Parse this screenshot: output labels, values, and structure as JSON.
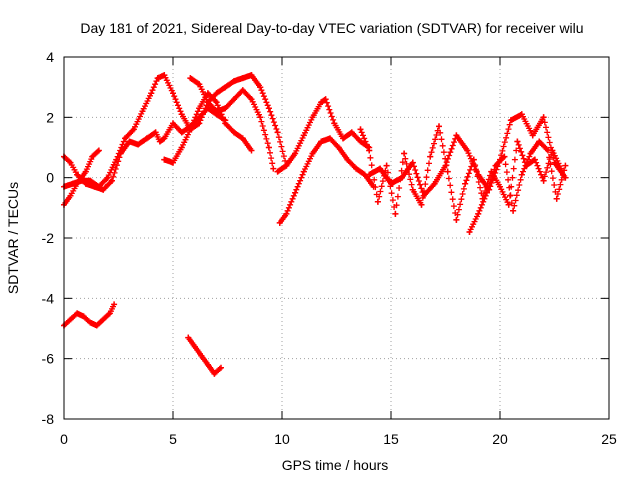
{
  "chart_data": {
    "type": "scatter",
    "title": "Day 181 of 2021, Sidereal Day-to-day VTEC variation (SDTVAR) for receiver wilu",
    "xlabel": "GPS time / hours",
    "ylabel": "SDTVAR / TECUs",
    "xlim": [
      0,
      25
    ],
    "ylim": [
      -8,
      4
    ],
    "x_ticks": [
      0,
      5,
      10,
      15,
      20,
      25
    ],
    "y_ticks": [
      -8,
      -6,
      -4,
      -2,
      0,
      2,
      4
    ],
    "x_tick_labels": [
      "0",
      "5",
      "10",
      "15",
      "20",
      "25"
    ],
    "y_tick_labels": [
      "-8",
      "-6",
      "-4",
      "-2",
      "0",
      "2",
      "4"
    ],
    "grid": true,
    "marker": "+",
    "series_color": "#ff0000",
    "series": [
      {
        "name": "satellite track 1",
        "x": [
          0.0,
          0.3,
          0.6,
          1.0,
          1.4,
          1.8,
          2.2,
          2.6,
          3.0,
          3.4,
          3.8,
          4.2,
          4.4,
          4.6,
          5.0,
          5.4,
          5.8,
          6.2,
          6.6,
          7.0,
          7.4
        ],
        "y": [
          0.7,
          0.5,
          0.1,
          -0.2,
          -0.3,
          -0.4,
          -0.1,
          0.8,
          1.2,
          1.1,
          1.3,
          1.5,
          1.2,
          1.3,
          1.8,
          1.5,
          1.7,
          2.0,
          2.3,
          2.1,
          1.9
        ]
      },
      {
        "name": "satellite track 2",
        "x": [
          0.0,
          0.4,
          0.8,
          1.2,
          1.6,
          2.0,
          2.4,
          2.8,
          3.2,
          3.6,
          4.0,
          4.3,
          4.6,
          5.0,
          5.4,
          5.8,
          6.2,
          6.6,
          7.0,
          7.4,
          7.8,
          8.2,
          8.6,
          9.0,
          9.4,
          9.8,
          10.2
        ],
        "y": [
          -0.3,
          -0.2,
          -0.1,
          -0.1,
          -0.3,
          0.0,
          0.6,
          1.3,
          1.6,
          2.2,
          2.8,
          3.3,
          3.4,
          2.8,
          2.1,
          1.6,
          1.8,
          2.5,
          2.8,
          3.0,
          3.2,
          3.3,
          3.4,
          3.0,
          2.3,
          1.5,
          0.4
        ]
      },
      {
        "name": "satellite track 3",
        "x": [
          0.0,
          0.3,
          0.6,
          1.0,
          1.3,
          1.6
        ],
        "y": [
          -0.9,
          -0.6,
          -0.2,
          0.2,
          0.7,
          0.9
        ]
      },
      {
        "name": "satellite track 4",
        "x": [
          5.8,
          6.2,
          6.6,
          7.0,
          7.4,
          7.8,
          8.2,
          8.6,
          9.0,
          9.4,
          9.6
        ],
        "y": [
          3.3,
          3.1,
          2.5,
          2.2,
          2.3,
          2.6,
          2.9,
          2.6,
          2.0,
          1.0,
          0.3
        ]
      },
      {
        "name": "satellite track 5",
        "x": [
          4.6,
          5.0,
          5.4,
          5.8,
          6.2,
          6.6,
          7.0,
          7.4,
          7.8,
          8.2,
          8.6
        ],
        "y": [
          0.6,
          0.5,
          1.0,
          1.6,
          2.3,
          2.8,
          2.5,
          1.8,
          1.5,
          1.3,
          0.9
        ]
      },
      {
        "name": "satellite track 6",
        "x": [
          9.8,
          10.2,
          10.6,
          11.0,
          11.4,
          11.8,
          12.0,
          12.4,
          12.8,
          13.2,
          13.6,
          14.0
        ],
        "y": [
          0.2,
          0.4,
          0.8,
          1.4,
          2.0,
          2.5,
          2.6,
          1.8,
          1.3,
          1.5,
          1.2,
          1.0
        ]
      },
      {
        "name": "satellite track 7",
        "x": [
          9.9,
          10.2,
          10.6,
          11.0,
          11.4,
          11.8,
          12.2,
          12.6,
          13.0,
          13.4,
          13.8,
          14.2
        ],
        "y": [
          -1.5,
          -1.2,
          -0.5,
          0.2,
          0.8,
          1.2,
          1.3,
          1.0,
          0.6,
          0.3,
          0.1,
          -0.3
        ]
      },
      {
        "name": "satellite track 8",
        "x": [
          13.6,
          14.0,
          14.4,
          14.8,
          15.2,
          15.6,
          16.0,
          16.4,
          16.8,
          17.2,
          17.6,
          18.0,
          18.4,
          18.8,
          19.2,
          19.6,
          20.0,
          20.4,
          20.8,
          21.2,
          21.6,
          22.0,
          22.4,
          22.8
        ],
        "y": [
          1.6,
          0.9,
          -0.8,
          0.4,
          -1.2,
          0.8,
          -0.4,
          -0.9,
          0.7,
          1.7,
          0.2,
          -1.4,
          -0.2,
          0.6,
          -0.7,
          0.2,
          -0.3,
          -0.9,
          1.2,
          0.4,
          0.6,
          -0.1,
          0.9,
          0.3
        ]
      },
      {
        "name": "satellite track 9",
        "x": [
          14.0,
          14.5,
          15.0,
          15.5,
          16.0,
          16.5,
          17.0,
          17.5,
          18.0,
          18.5,
          19.0,
          19.5,
          20.0,
          20.5,
          21.0,
          21.5,
          22.0,
          22.5,
          23.0
        ],
        "y": [
          0.1,
          0.3,
          -0.2,
          0.0,
          0.5,
          -0.6,
          -0.2,
          0.4,
          1.4,
          0.9,
          0.1,
          -0.4,
          0.6,
          1.9,
          2.1,
          1.4,
          2.0,
          0.5,
          0.0
        ]
      },
      {
        "name": "satellite track 10",
        "x": [
          18.6,
          19.0,
          19.4,
          19.8,
          20.2,
          20.6,
          21.0,
          21.4,
          21.8,
          22.2,
          22.6,
          23.0
        ],
        "y": [
          -1.8,
          -1.2,
          -0.5,
          0.4,
          0.7,
          -1.1,
          0.1,
          0.8,
          1.2,
          0.9,
          -0.7,
          0.4
        ]
      },
      {
        "name": "satellite track 11",
        "x": [
          0.0,
          0.3,
          0.6,
          0.9,
          1.2,
          1.5,
          1.8,
          2.1,
          2.3
        ],
        "y": [
          -4.9,
          -4.7,
          -4.5,
          -4.6,
          -4.8,
          -4.9,
          -4.7,
          -4.5,
          -4.2
        ]
      },
      {
        "name": "satellite track 12",
        "x": [
          5.7,
          6.0,
          6.3,
          6.6,
          6.9,
          7.2
        ],
        "y": [
          -5.3,
          -5.6,
          -5.9,
          -6.2,
          -6.5,
          -6.3
        ]
      }
    ]
  }
}
